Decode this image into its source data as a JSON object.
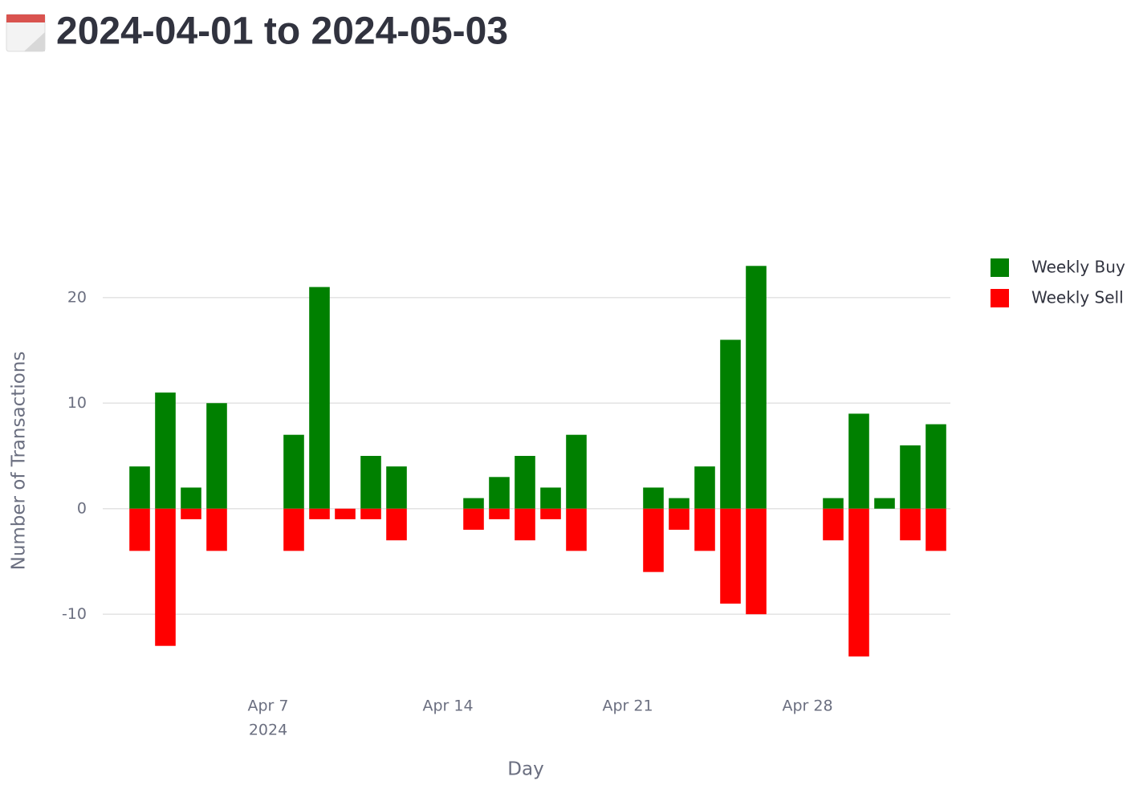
{
  "header": {
    "title": "2024-04-01 to 2024-05-03"
  },
  "chart_data": {
    "type": "bar",
    "barmode": "relative",
    "x": [
      "2024-04-02",
      "2024-04-03",
      "2024-04-04",
      "2024-04-05",
      "2024-04-08",
      "2024-04-09",
      "2024-04-10",
      "2024-04-11",
      "2024-04-12",
      "2024-04-15",
      "2024-04-16",
      "2024-04-17",
      "2024-04-18",
      "2024-04-19",
      "2024-04-22",
      "2024-04-23",
      "2024-04-24",
      "2024-04-25",
      "2024-04-26",
      "2024-04-29",
      "2024-04-30",
      "2024-05-01",
      "2024-05-02",
      "2024-05-03"
    ],
    "series": [
      {
        "name": "Weekly Buy",
        "color": "#008000",
        "values": [
          4,
          11,
          2,
          10,
          7,
          21,
          0,
          5,
          4,
          1,
          3,
          5,
          2,
          7,
          2,
          1,
          4,
          16,
          23,
          1,
          9,
          1,
          6,
          8
        ]
      },
      {
        "name": "Weekly Sell",
        "color": "#ff0000",
        "values": [
          -4,
          -13,
          -1,
          -4,
          -4,
          -1,
          -1,
          -1,
          -3,
          -2,
          -1,
          -3,
          -1,
          -4,
          -6,
          -2,
          -4,
          -9,
          -10,
          -3,
          -14,
          0,
          -3,
          -4
        ]
      }
    ],
    "xlabel": "Day",
    "ylabel": "Number of Transactions",
    "xlim": [
      "2024-03-31T13:30:00Z",
      "2024-05-03T13:30:00Z"
    ],
    "xticks": [
      {
        "value": "2024-04-07",
        "label": "Apr 7"
      },
      {
        "value": "2024-04-14",
        "label": "Apr 14"
      },
      {
        "value": "2024-04-21",
        "label": "Apr 21"
      },
      {
        "value": "2024-04-28",
        "label": "Apr 28"
      }
    ],
    "xtick_year": "2024",
    "ylim": [
      -15,
      25
    ],
    "yticks": [
      -10,
      0,
      10,
      20
    ],
    "grid": true,
    "legend": "right"
  }
}
